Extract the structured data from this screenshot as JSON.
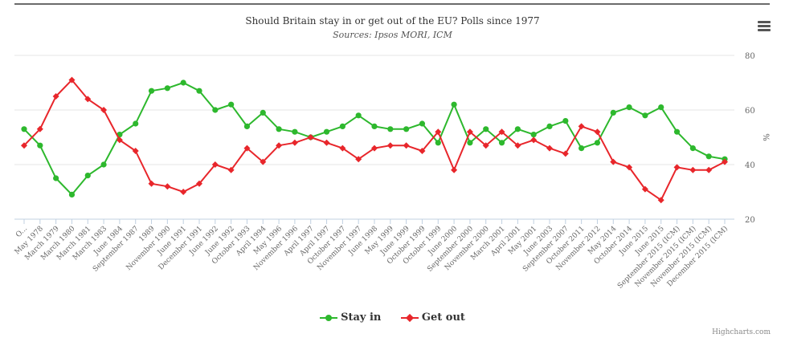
{
  "chart_data": {
    "type": "line",
    "title": "Should Britain stay in or get out of the EU? Polls since 1977",
    "subtitle": "Sources: Ipsos MORI, ICM",
    "ylabel": "%",
    "ylim": [
      20,
      80
    ],
    "yticks": [
      "20",
      "40",
      "60",
      "80"
    ],
    "grid": true,
    "legend": "bottom-center",
    "categories": [
      "O...",
      "May 1978",
      "March 1979",
      "March 1980",
      "March 1981",
      "March 1983",
      "June 1984",
      "September 1987",
      "1989",
      "November 1990",
      "June 1991",
      "December 1991",
      "June 1992",
      "June 1992",
      "October 1993",
      "April 1994",
      "May 1996",
      "November 1996",
      "April 1997",
      "April 1997",
      "October 1997",
      "November 1997",
      "June 1998",
      "May 1999",
      "June 1999",
      "October 1999",
      "October 1999",
      "June 2000",
      "September 2000",
      "November 2000",
      "March 2001",
      "April 2001",
      "May 2001",
      "June 2003",
      "September 2007",
      "October 2011",
      "November 2012",
      "May 2014",
      "October 2014",
      "June 2015",
      "June 2015",
      "September 2015 (ICM)",
      "November 2015 (ICM)",
      "November 2015 (ICM)",
      "December 2015 (ICM)"
    ],
    "series": [
      {
        "name": "Stay in",
        "color": "#2db82d",
        "values": [
          53,
          47,
          35,
          29,
          36,
          40,
          51,
          55,
          67,
          68,
          70,
          67,
          60,
          62,
          54,
          59,
          53,
          52,
          50,
          52,
          54,
          58,
          54,
          53,
          53,
          55,
          48,
          62,
          48,
          53,
          48,
          53,
          51,
          54,
          56,
          46,
          48,
          59,
          61,
          58,
          61,
          52,
          46,
          43,
          42
        ]
      },
      {
        "name": "Get out",
        "color": "#e8262b",
        "values": [
          47,
          53,
          65,
          71,
          64,
          60,
          49,
          45,
          33,
          32,
          30,
          33,
          40,
          38,
          46,
          41,
          47,
          48,
          50,
          48,
          46,
          42,
          46,
          47,
          47,
          45,
          52,
          38,
          52,
          47,
          52,
          47,
          49,
          46,
          44,
          54,
          52,
          41,
          39,
          31,
          27,
          39,
          38,
          38,
          41
        ]
      }
    ]
  },
  "menu": {
    "icon": "hamburger-menu-icon"
  },
  "credits": "Highcharts.com"
}
